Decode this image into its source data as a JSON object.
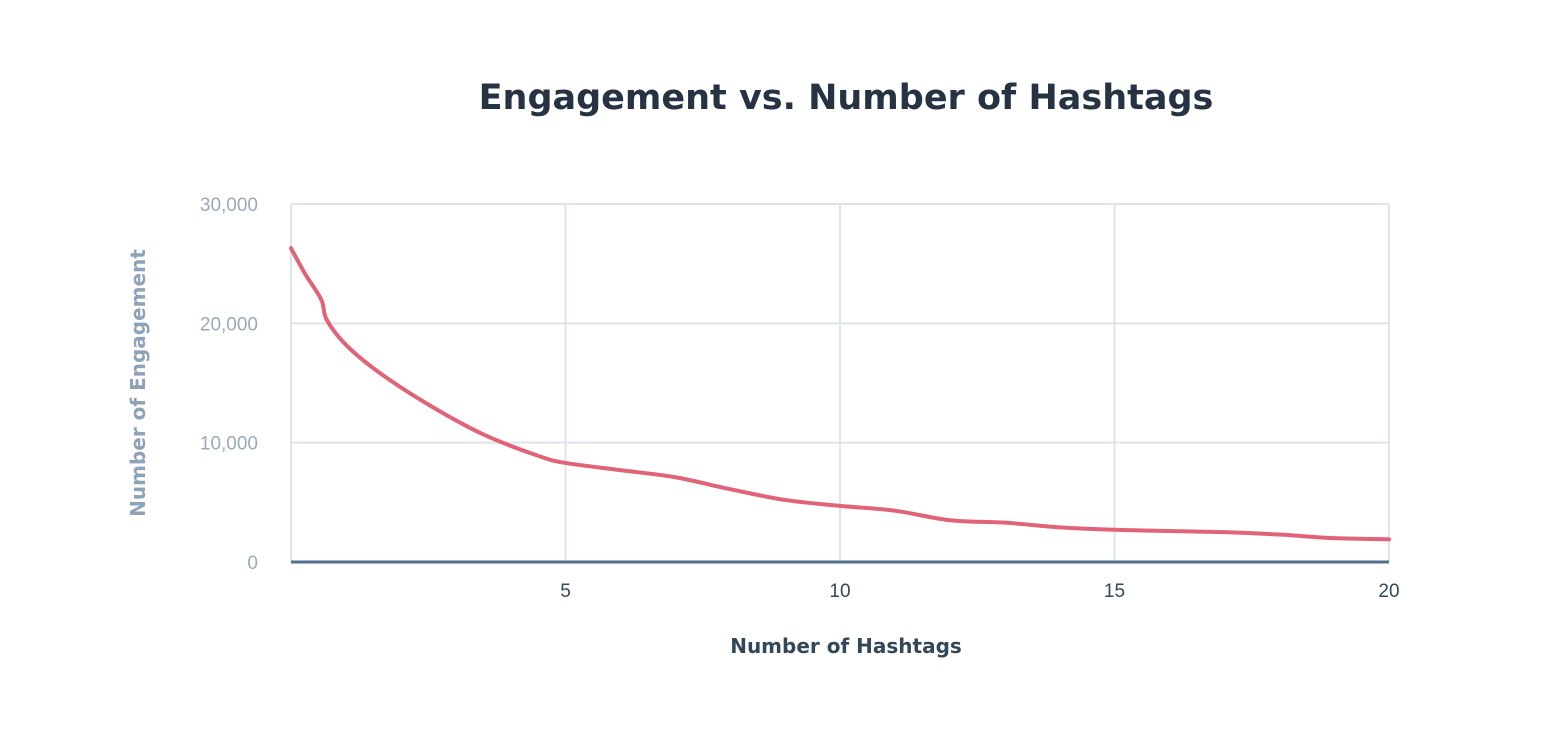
{
  "chart_data": {
    "type": "line",
    "title": "Engagement vs. Number of Hashtags",
    "xlabel": "Number of Hashtags",
    "ylabel": "Number of Engagement",
    "xlim": [
      0,
      20
    ],
    "ylim": [
      0,
      30000
    ],
    "x_ticks": [
      5,
      10,
      15,
      20
    ],
    "y_ticks": [
      0,
      10000,
      20000,
      30000
    ],
    "y_tick_labels": [
      "0",
      "10,000",
      "20,000",
      "30,000"
    ],
    "grid": true,
    "legend": "none",
    "series": [
      {
        "color": "#e06377",
        "x": [
          0,
          0.25,
          0.55,
          0.65,
          1.0,
          1.6,
          2.5,
          3.5,
          4.5,
          5.0,
          6.0,
          7.0,
          8.0,
          9.0,
          10.0,
          11.0,
          12.0,
          13.0,
          14.0,
          15.0,
          16.0,
          17.0,
          18.0,
          19.0,
          20.0
        ],
        "y": [
          26300,
          24200,
          22000,
          20300,
          18200,
          15900,
          13200,
          10700,
          8900,
          8300,
          7700,
          7100,
          6100,
          5200,
          4700,
          4300,
          3500,
          3300,
          2900,
          2700,
          2600,
          2500,
          2300,
          2000,
          1900
        ]
      }
    ],
    "colors": {
      "line": "#e06377",
      "grid": "#dfe3eb",
      "baseline": "#516f90"
    }
  }
}
